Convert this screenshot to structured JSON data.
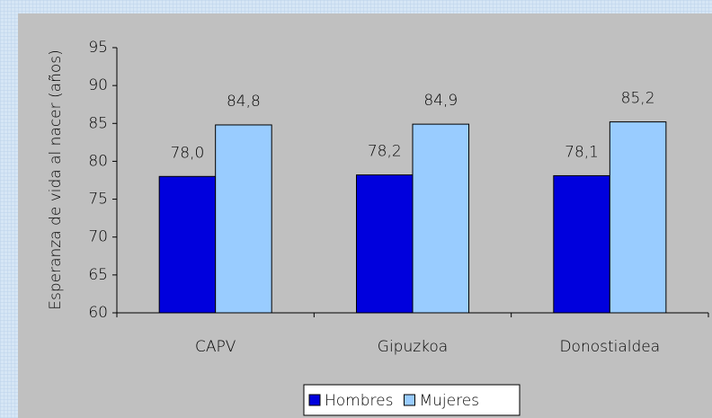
{
  "chart_data": {
    "type": "bar",
    "y_label": "Esperanza de vida al nacer (años)",
    "categories": [
      "CAPV",
      "Gipuzkoa",
      "Donostialdea"
    ],
    "series": [
      {
        "name": "Hombres",
        "color": "#0000dd",
        "values": [
          78.0,
          78.2,
          78.1
        ],
        "value_labels": [
          "78,0",
          "78,2",
          "78,1"
        ]
      },
      {
        "name": "Mujeres",
        "color": "#99ccff",
        "values": [
          84.8,
          84.9,
          85.2
        ],
        "value_labels": [
          "84,8",
          "84,9",
          "85,2"
        ]
      }
    ],
    "ylim": [
      60,
      95
    ],
    "yticks": [
      60,
      65,
      70,
      75,
      80,
      85,
      90,
      95
    ],
    "grid": false,
    "legend": "bottom"
  }
}
